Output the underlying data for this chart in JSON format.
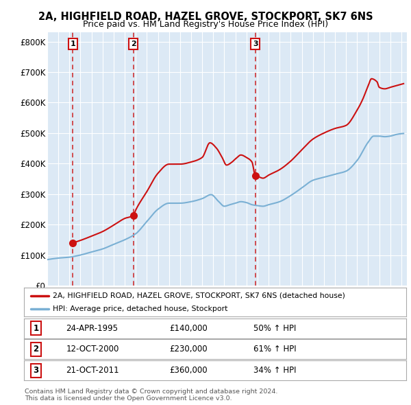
{
  "title": "2A, HIGHFIELD ROAD, HAZEL GROVE, STOCKPORT, SK7 6NS",
  "subtitle": "Price paid vs. HM Land Registry's House Price Index (HPI)",
  "background_color": "#ffffff",
  "plot_bg_color": "#dce9f5",
  "grid_color": "#ffffff",
  "sale_prices": [
    140000,
    230000,
    360000
  ],
  "sale_labels": [
    "1",
    "2",
    "3"
  ],
  "sale_date_str": [
    "24-APR-1995",
    "12-OCT-2000",
    "21-OCT-2011"
  ],
  "sale_price_str": [
    "£140,000",
    "£230,000",
    "£360,000"
  ],
  "sale_hpi_str": [
    "50% ↑ HPI",
    "61% ↑ HPI",
    "34% ↑ HPI"
  ],
  "ylim": [
    0,
    830000
  ],
  "yticks": [
    0,
    100000,
    200000,
    300000,
    400000,
    500000,
    600000,
    700000,
    800000
  ],
  "ytick_labels": [
    "£0",
    "£100K",
    "£200K",
    "£300K",
    "£400K",
    "£500K",
    "£600K",
    "£700K",
    "£800K"
  ],
  "red_line_color": "#cc1111",
  "blue_line_color": "#7ab0d4",
  "vline_color": "#cc1111",
  "legend_line1": "2A, HIGHFIELD ROAD, HAZEL GROVE, STOCKPORT, SK7 6NS (detached house)",
  "legend_line2": "HPI: Average price, detached house, Stockport",
  "footnote": "Contains HM Land Registry data © Crown copyright and database right 2024.\nThis data is licensed under the Open Government Licence v3.0.",
  "xlim_start": 1993.0,
  "xlim_end": 2025.5,
  "sale_decimal": [
    1995.31,
    2000.79,
    2011.8
  ]
}
